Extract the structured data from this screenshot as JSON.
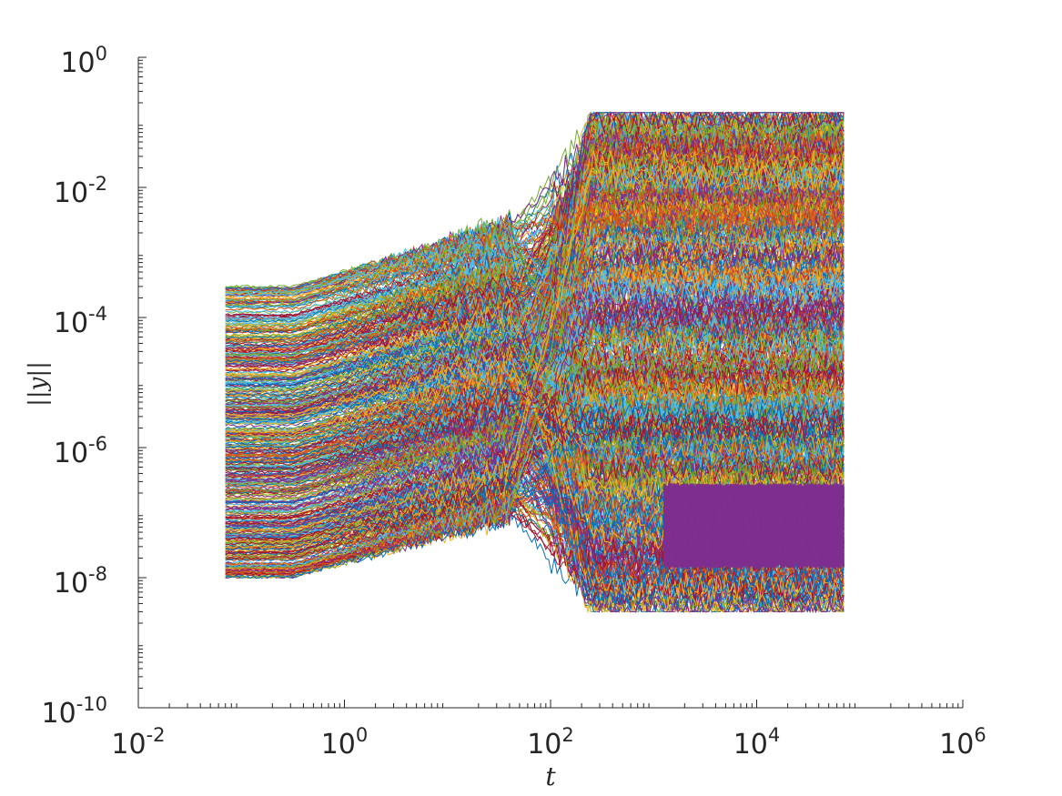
{
  "chart_data": {
    "type": "line",
    "title": "",
    "xlabel": "t",
    "ylabel": "||y||",
    "xscale": "log",
    "yscale": "log",
    "xlim": [
      0.01,
      1000000
    ],
    "ylim": [
      1e-10,
      1
    ],
    "x_ticks": [
      {
        "base": "10",
        "exp": "-2"
      },
      {
        "base": "10",
        "exp": "0"
      },
      {
        "base": "10",
        "exp": "2"
      },
      {
        "base": "10",
        "exp": "4"
      },
      {
        "base": "10",
        "exp": "6"
      }
    ],
    "y_ticks": [
      {
        "base": "10",
        "exp": "0"
      },
      {
        "base": "10",
        "exp": "-2"
      },
      {
        "base": "10",
        "exp": "-4"
      },
      {
        "base": "10",
        "exp": "-6"
      },
      {
        "base": "10",
        "exp": "-8"
      },
      {
        "base": "10",
        "exp": "-10"
      }
    ],
    "grid": false,
    "legend": "none",
    "t_range": [
      0.07,
      70000
    ],
    "series_count_approx": 600,
    "initial_value_range": [
      1e-08,
      0.0003
    ],
    "late_time_value_range": [
      3e-09,
      0.15
    ],
    "series_colors": [
      "#0072BD",
      "#D95319",
      "#EDB120",
      "#7E2F8E",
      "#77AC30",
      "#4DBEEE",
      "#A2142F"
    ]
  }
}
